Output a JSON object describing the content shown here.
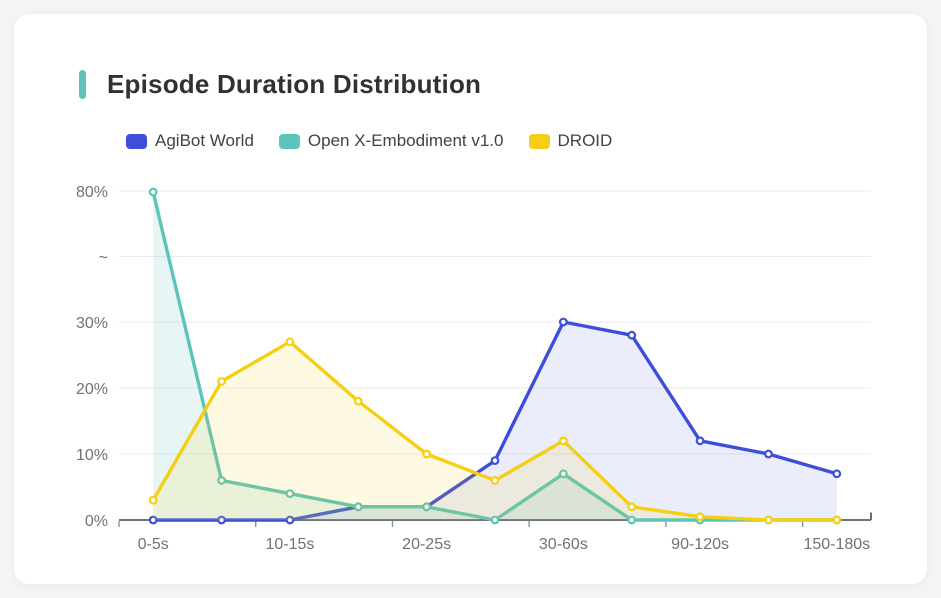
{
  "card": {
    "title": "Episode Duration Distribution",
    "accent_color": "#5EC3BA"
  },
  "legend": {
    "items": [
      {
        "label": "AgiBot World",
        "color": "#3D4ED8"
      },
      {
        "label": "Open X-Embodiment v1.0",
        "color": "#5BC4BB"
      },
      {
        "label": "DROID",
        "color": "#F5CF14"
      }
    ]
  },
  "chart_data": {
    "type": "line",
    "title": "Episode Duration Distribution",
    "categories": [
      "0-5s",
      "",
      "10-15s",
      "",
      "20-25s",
      "",
      "30-60s",
      "",
      "90-120s",
      "",
      "150-180s"
    ],
    "series": [
      {
        "name": "AgiBot World",
        "color": "#3D4ED8",
        "fill": "rgba(61,78,216,0.10)",
        "values": [
          0,
          0,
          0,
          2,
          2,
          9,
          30,
          28,
          12,
          10,
          7
        ]
      },
      {
        "name": "Open X-Embodiment v1.0",
        "color": "#5BC4BB",
        "fill": "rgba(91,196,187,0.15)",
        "values": [
          79.6,
          6,
          4,
          2,
          2,
          0,
          7,
          0,
          0,
          0,
          0
        ]
      },
      {
        "name": "DROID",
        "color": "#F5CF14",
        "fill": "rgba(245,207,20,0.12)",
        "values": [
          3,
          21,
          27,
          18,
          10,
          6,
          12,
          2,
          0.5,
          0,
          0
        ]
      }
    ],
    "y_axis": {
      "unit": "%",
      "tick_labels": [
        "0%",
        "10%",
        "20%",
        "30%",
        "~",
        "80%"
      ],
      "tick_values": [
        0,
        10,
        20,
        30,
        "break",
        80
      ],
      "axis_break": {
        "between": [
          30,
          80
        ]
      }
    },
    "x_axis": {
      "visible_labels": [
        "0-5s",
        "10-15s",
        "20-25s",
        "30-60s",
        "90-120s",
        "150-180s"
      ]
    },
    "grid": true,
    "legend_position": "top-left"
  }
}
